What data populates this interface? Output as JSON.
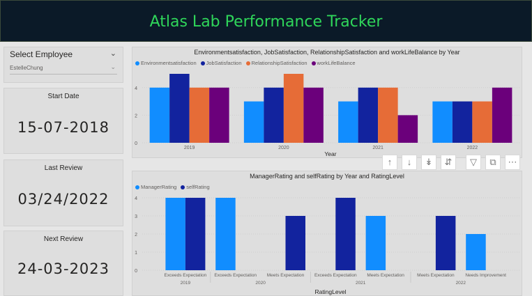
{
  "header": {
    "title": "Atlas Lab Performance Tracker"
  },
  "slicer": {
    "label": "Select Employee",
    "value": "EstelleChung",
    "icon": "chevron-down-icon"
  },
  "kpis": {
    "start": {
      "label": "Start Date",
      "value": "15-07-2018"
    },
    "last": {
      "label": "Last Review",
      "value": "03/24/2022"
    },
    "next": {
      "label": "Next Review",
      "value": "24-03-2023"
    }
  },
  "toolbar": {
    "icons": [
      "arrow-up-icon",
      "arrow-down-icon",
      "double-arrow-down-icon",
      "expand-hierarchy-icon",
      "filter-icon",
      "focus-mode-icon",
      "more-options-icon"
    ]
  },
  "chart_data": [
    {
      "type": "bar",
      "title": "Environmentsatisfaction, JobSatisfaction, RelationshipSatisfaction and workLifeBalance by Year",
      "xlabel": "Year",
      "ylabel": "",
      "categories": [
        "2019",
        "2020",
        "2021",
        "2022"
      ],
      "ylim": [
        0,
        5
      ],
      "yticks": [
        "0",
        "2",
        "4"
      ],
      "legend_position": "top-left",
      "series": [
        {
          "name": "Environmentsatisfaction",
          "color": "#118dff",
          "values": [
            4,
            3,
            3,
            3
          ]
        },
        {
          "name": "JobSatisfaction",
          "color": "#12239e",
          "values": [
            5,
            4,
            4,
            3
          ]
        },
        {
          "name": "RelationshipSatisfaction",
          "color": "#e66c37",
          "values": [
            4,
            5,
            4,
            3
          ]
        },
        {
          "name": "workLifeBalance",
          "color": "#6b007b",
          "values": [
            4,
            4,
            2,
            4
          ]
        }
      ]
    },
    {
      "type": "bar",
      "title": "ManagerRating and selfRating by Year and RatingLevel",
      "xlabel": "RatingLevel",
      "ylabel": "",
      "ylim": [
        0,
        4
      ],
      "yticks": [
        "0",
        "1",
        "2",
        "3",
        "4"
      ],
      "legend_position": "top-left",
      "groups": [
        {
          "year": "2019",
          "categories": [
            "Exceeds Expectation"
          ]
        },
        {
          "year": "2020",
          "categories": [
            "Exceeds Expectation",
            "Meets Expectation"
          ]
        },
        {
          "year": "2021",
          "categories": [
            "Exceeds Expectation",
            "Meets Expectation"
          ]
        },
        {
          "year": "2022",
          "categories": [
            "Meets Expectation",
            "Needs Improvement"
          ]
        }
      ],
      "series": [
        {
          "name": "ManagerRating",
          "color": "#118dff",
          "values": [
            4,
            4,
            null,
            null,
            3,
            null,
            2
          ]
        },
        {
          "name": "selfRating",
          "color": "#12239e",
          "values": [
            4,
            null,
            3,
            4,
            null,
            3,
            null
          ]
        }
      ]
    }
  ]
}
